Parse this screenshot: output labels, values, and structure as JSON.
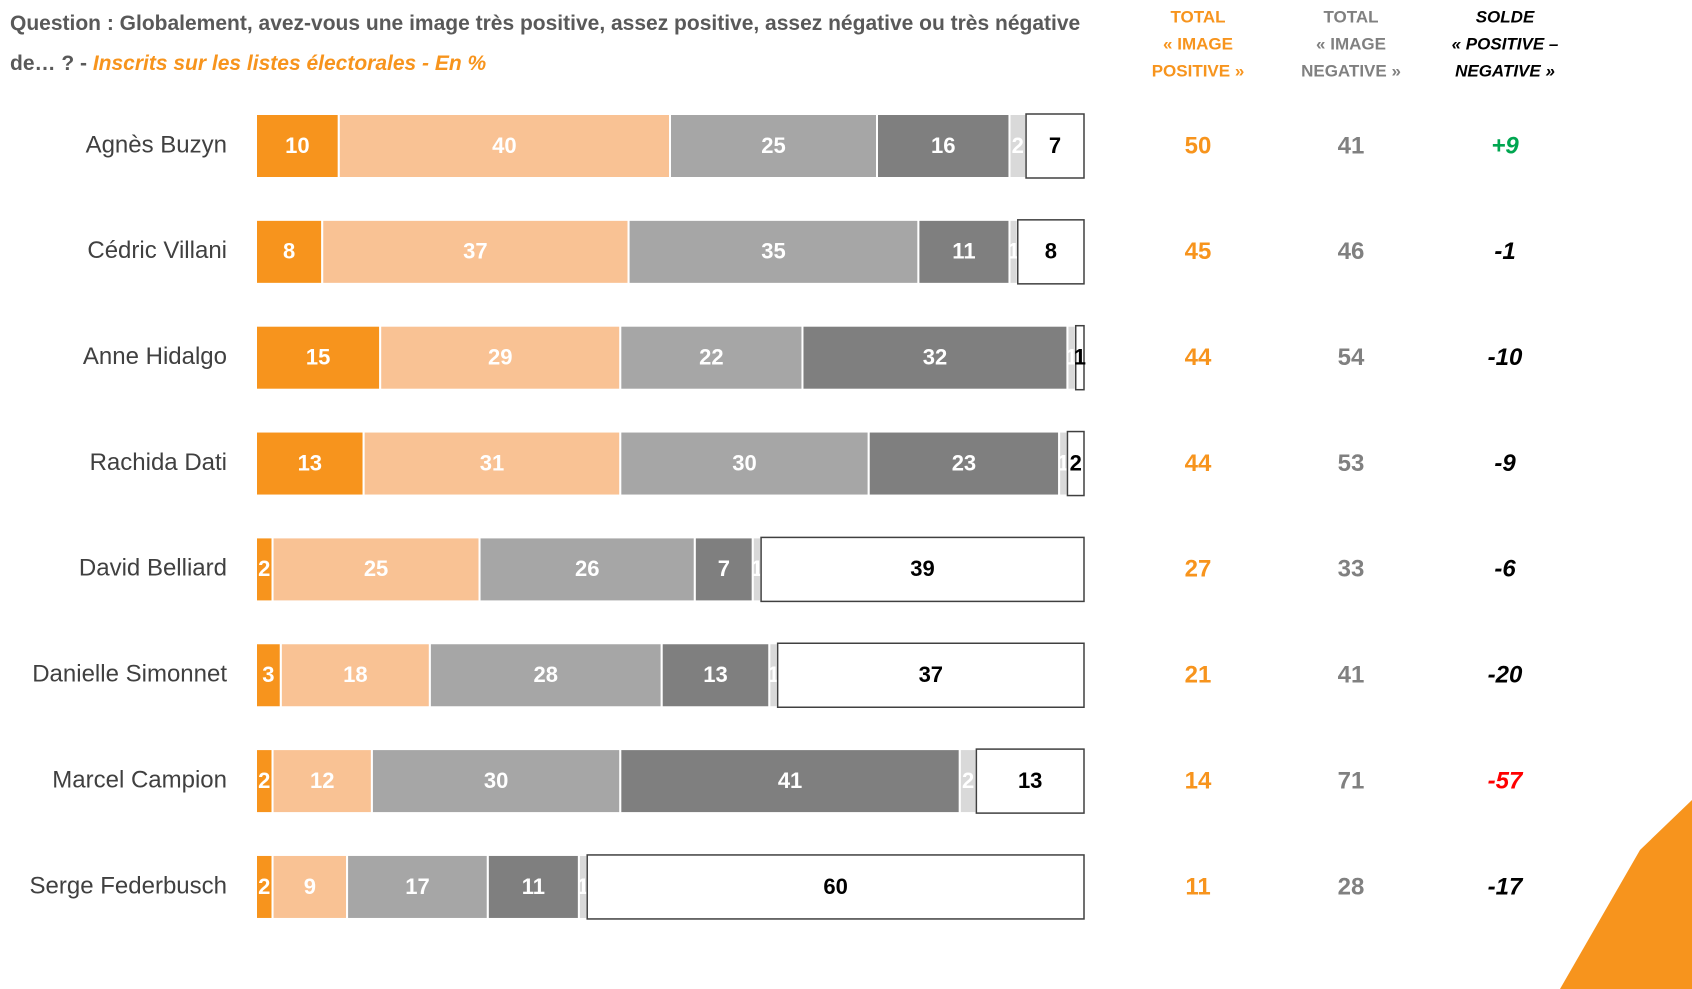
{
  "chart_data": {
    "type": "bar",
    "orientation": "horizontal",
    "stacked": true,
    "title": "Question : Globalement, avez-vous une image très positive, assez positive, assez négative ou très négative de… ? -",
    "subtitle": "Inscrits sur les listes électorales - En  %",
    "categories": [
      "Agnès Buzyn",
      "Cédric Villani",
      "Anne Hidalgo",
      "Rachida Dati",
      "David Belliard",
      "Danielle Simonnet",
      "Marcel Campion",
      "Serge Federbusch"
    ],
    "xlim": [
      0,
      100
    ],
    "series": [
      {
        "color": "#f7941d",
        "label_color": "#ffffff",
        "values": [
          10,
          8,
          15,
          13,
          2,
          3,
          2,
          2
        ]
      },
      {
        "color": "#f9c294",
        "label_color": "#ffffff",
        "values": [
          40,
          37,
          29,
          31,
          25,
          18,
          12,
          9
        ]
      },
      {
        "color": "#a6a6a6",
        "label_color": "#ffffff",
        "values": [
          25,
          35,
          22,
          30,
          26,
          28,
          30,
          17
        ]
      },
      {
        "color": "#7f7f7f",
        "label_color": "#ffffff",
        "values": [
          16,
          11,
          32,
          23,
          7,
          13,
          41,
          11
        ]
      },
      {
        "color": "#d9d9d9",
        "label_color": "#ffffff",
        "values": [
          2,
          1,
          1,
          1,
          1,
          1,
          2,
          1
        ]
      },
      {
        "color": "#ffffff",
        "label_color": "#000000",
        "border": "#404040",
        "values": [
          7,
          8,
          1,
          2,
          39,
          37,
          13,
          60
        ]
      }
    ],
    "columns": [
      {
        "header": [
          "TOTAL",
          "« IMAGE",
          "POSITIVE »"
        ],
        "color": "#f7941d",
        "italic": false,
        "values": [
          50,
          45,
          44,
          44,
          27,
          21,
          14,
          11
        ]
      },
      {
        "header": [
          "TOTAL",
          "« IMAGE",
          "NEGATIVE »"
        ],
        "color": "#808080",
        "italic": false,
        "values": [
          41,
          46,
          54,
          53,
          33,
          41,
          71,
          28
        ]
      },
      {
        "header": [
          "SOLDE",
          "« POSITIVE –",
          "NEGATIVE »"
        ],
        "color": "#000000",
        "italic": true,
        "values": [
          9,
          -1,
          -10,
          -9,
          -6,
          -20,
          -57,
          -17
        ],
        "value_labels": [
          "+9",
          "-1",
          "-10",
          "-9",
          "-6",
          "-20",
          "-57",
          "-17"
        ],
        "colors": [
          "#00a650",
          "#000000",
          "#000000",
          "#000000",
          "#000000",
          "#000000",
          "#ff0000",
          "#000000"
        ]
      }
    ]
  }
}
